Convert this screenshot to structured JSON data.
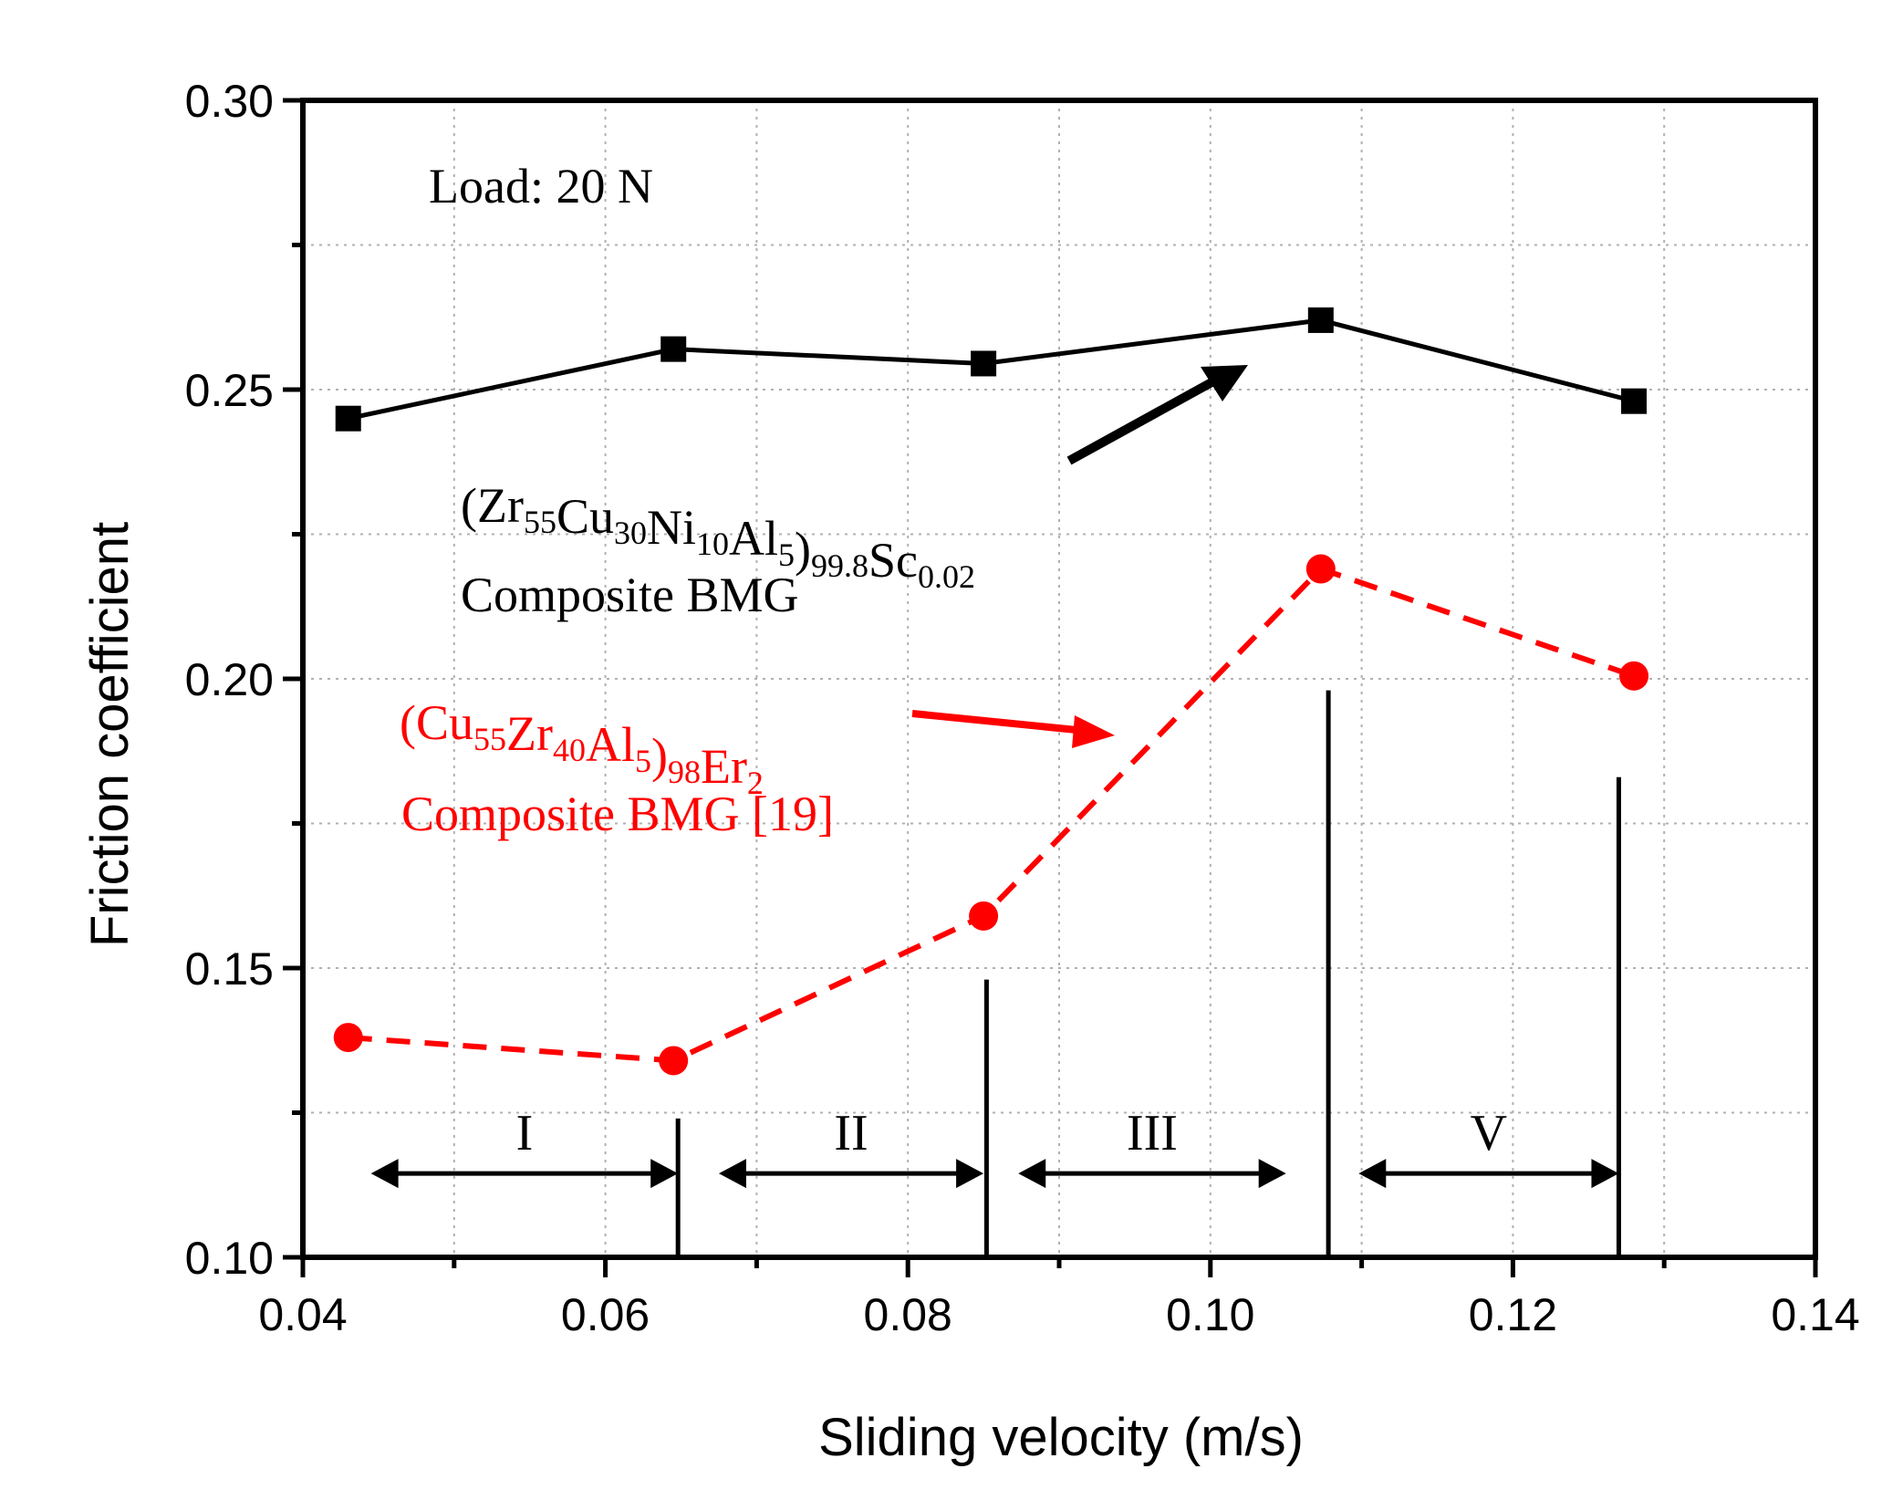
{
  "chart_data": {
    "type": "line",
    "title": "",
    "xlabel": "Sliding velocity (m/s)",
    "ylabel": "Friction coefficient",
    "xlim": [
      0.04,
      0.14
    ],
    "ylim": [
      0.1,
      0.3
    ],
    "x_ticks": [
      "0.04",
      "0.06",
      "0.08",
      "0.10",
      "0.12",
      "0.14"
    ],
    "y_ticks": [
      "0.10",
      "0.15",
      "0.20",
      "0.25",
      "0.30"
    ],
    "grid": "dotted",
    "annotation_load": "Load: 20 N",
    "series": [
      {
        "name": "(Zr55Cu30Ni10Al5)99.8Sc0.02 Composite BMG",
        "color": "#000000",
        "marker": "square",
        "linestyle": "solid",
        "x": [
          0.043,
          0.0645,
          0.085,
          0.1073,
          0.128
        ],
        "y": [
          0.245,
          0.257,
          0.2545,
          0.262,
          0.248
        ]
      },
      {
        "name": "(Cu55Zr40Al5)98Er2 Composite BMG [19]",
        "color": "#ff0000",
        "marker": "circle",
        "linestyle": "dashed",
        "x": [
          0.043,
          0.0645,
          0.085,
          0.1073,
          0.128
        ],
        "y": [
          0.138,
          0.134,
          0.159,
          0.219,
          0.2005
        ]
      }
    ],
    "legend_labels": {
      "black": {
        "formula": [
          {
            "t": "(Zr",
            "sub": false
          },
          {
            "t": "55",
            "sub": true
          },
          {
            "t": "Cu",
            "sub": false
          },
          {
            "t": "30",
            "sub": true
          },
          {
            "t": "Ni",
            "sub": false
          },
          {
            "t": "10",
            "sub": true
          },
          {
            "t": "Al",
            "sub": false
          },
          {
            "t": "5",
            "sub": true
          },
          {
            "t": ")",
            "sub": false
          },
          {
            "t": "99.8",
            "sub": true
          },
          {
            "t": "Sc",
            "sub": false
          },
          {
            "t": "0.02",
            "sub": true
          }
        ],
        "line2": "Composite BMG"
      },
      "red": {
        "formula": [
          {
            "t": "(Cu",
            "sub": false
          },
          {
            "t": "55",
            "sub": true
          },
          {
            "t": "Zr",
            "sub": false
          },
          {
            "t": "40",
            "sub": true
          },
          {
            "t": "Al",
            "sub": false
          },
          {
            "t": "5",
            "sub": true
          },
          {
            "t": ")",
            "sub": false
          },
          {
            "t": "98",
            "sub": true
          },
          {
            "t": "Er",
            "sub": false
          },
          {
            "t": "2",
            "sub": true
          }
        ],
        "line2": "Composite BMG [19]"
      }
    },
    "regions": [
      {
        "label": "I",
        "from": 0.0445,
        "to": 0.0648
      },
      {
        "label": "II",
        "from": 0.0675,
        "to": 0.085
      },
      {
        "label": "III",
        "from": 0.0873,
        "to": 0.105
      },
      {
        "label": "V",
        "from": 0.1098,
        "to": 0.127
      }
    ],
    "dividers": [
      {
        "x": 0.0648,
        "y_top": 0.124
      },
      {
        "x": 0.0852,
        "y_top": 0.148
      },
      {
        "x": 0.1078,
        "y_top": 0.198
      },
      {
        "x": 0.127,
        "y_top": 0.183
      }
    ],
    "region_arrow_y": 0.1145
  }
}
